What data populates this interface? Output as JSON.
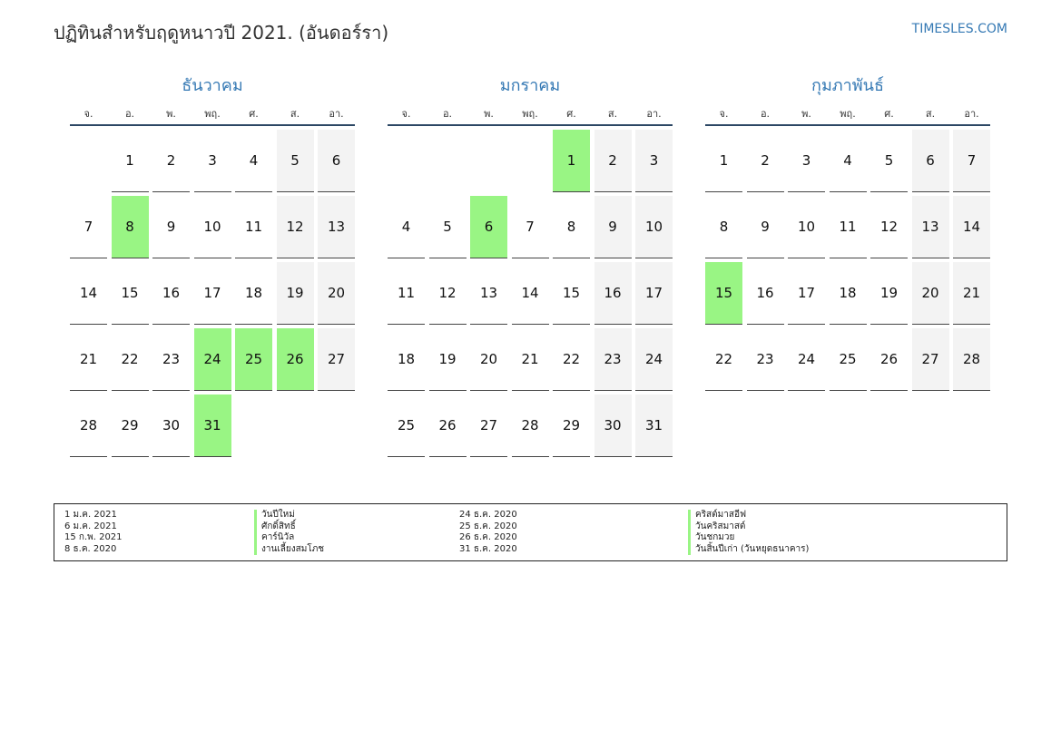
{
  "header": {
    "title": "ปฏิทินสำหรับฤดูหนาวปี 2021. (อันดอร์รา)",
    "site": "TIMESLES.COM"
  },
  "weekdays": [
    "จ.",
    "อ.",
    "พ.",
    "พฤ.",
    "ศ.",
    "ส.",
    "อา."
  ],
  "months": [
    {
      "name": "ธันวาคม",
      "start_offset": 1,
      "days": 31,
      "holidays": [
        8,
        24,
        25,
        26,
        31
      ]
    },
    {
      "name": "มกราคม",
      "start_offset": 4,
      "days": 31,
      "holidays": [
        1,
        6
      ]
    },
    {
      "name": "กุมภาพันธ์",
      "start_offset": 0,
      "days": 28,
      "holidays": [
        15
      ]
    }
  ],
  "legend": {
    "col1_dates": [
      "1 ม.ค. 2021",
      "6 ม.ค. 2021",
      "15 ก.พ. 2021",
      "8 ธ.ค. 2020"
    ],
    "col1_names": [
      "วันปีใหม่",
      "ศักดิ์สิทธิ์",
      "คาร์นิวัล",
      "งานเลี้ยงสมโภช"
    ],
    "col2_dates": [
      "24 ธ.ค. 2020",
      "25 ธ.ค. 2020",
      "26 ธ.ค. 2020",
      "31 ธ.ค. 2020"
    ],
    "col2_names": [
      "คริสต์มาสอีฟ",
      "วันคริสมาสต์",
      "วันชกมวย",
      "วันสิ้นปีเก่า (วันหยุดธนาคาร)"
    ]
  },
  "colors": {
    "accent": "#3579b4",
    "holiday": "#99f584",
    "weekend": "#f3f3f3"
  }
}
